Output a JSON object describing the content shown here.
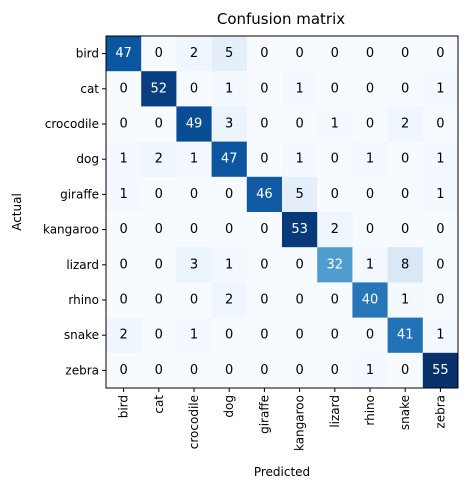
{
  "chart_data": {
    "type": "heatmap",
    "title": "Confusion matrix",
    "xlabel": "Predicted",
    "ylabel": "Actual",
    "categories": [
      "bird",
      "cat",
      "crocodile",
      "dog",
      "giraffe",
      "kangaroo",
      "lizard",
      "rhino",
      "snake",
      "zebra"
    ],
    "matrix": [
      [
        47,
        0,
        2,
        5,
        0,
        0,
        0,
        0,
        0,
        0
      ],
      [
        0,
        52,
        0,
        1,
        0,
        1,
        0,
        0,
        0,
        1
      ],
      [
        0,
        0,
        49,
        3,
        0,
        0,
        1,
        0,
        2,
        0
      ],
      [
        1,
        2,
        1,
        47,
        0,
        1,
        0,
        1,
        0,
        1
      ],
      [
        1,
        0,
        0,
        0,
        46,
        5,
        0,
        0,
        0,
        1
      ],
      [
        0,
        0,
        0,
        0,
        0,
        53,
        2,
        0,
        0,
        0
      ],
      [
        0,
        0,
        3,
        1,
        0,
        0,
        32,
        1,
        8,
        0
      ],
      [
        0,
        0,
        0,
        2,
        0,
        0,
        0,
        40,
        1,
        0
      ],
      [
        2,
        0,
        1,
        0,
        0,
        0,
        0,
        0,
        41,
        1
      ],
      [
        0,
        0,
        0,
        0,
        0,
        0,
        0,
        1,
        0,
        55
      ]
    ],
    "colormap": "Blues",
    "value_range": [
      0,
      55
    ],
    "grid": false,
    "legend": "none"
  }
}
